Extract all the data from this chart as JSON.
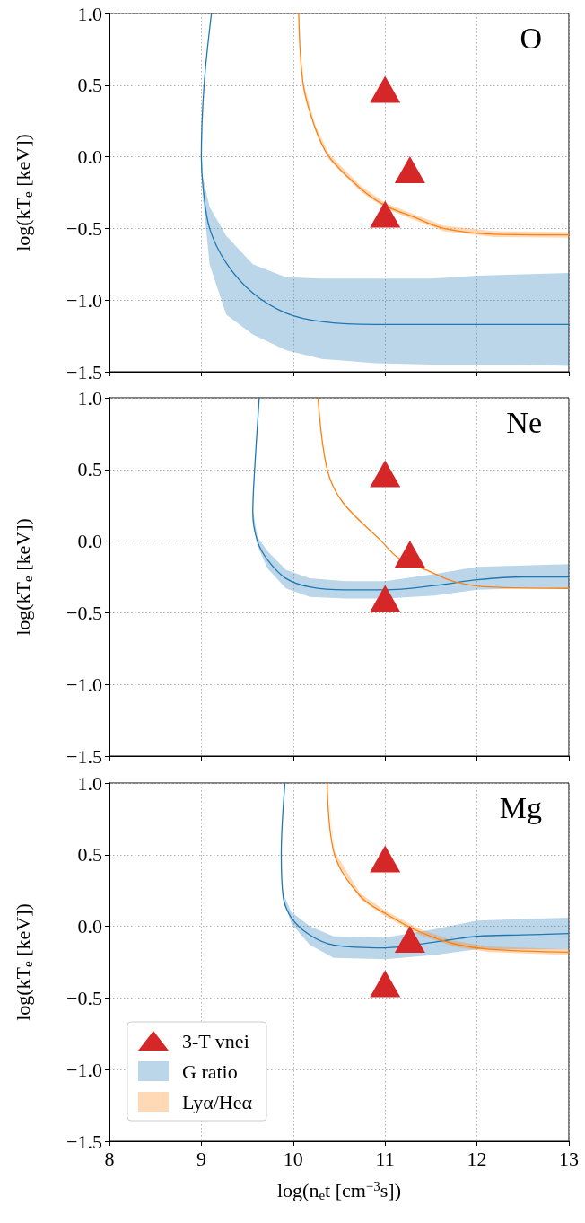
{
  "chart_data": [
    {
      "type": "line",
      "annotations": [
        "O"
      ],
      "ylabel": "log(kT$_{e}$ [keV])",
      "xlim": [
        8,
        13
      ],
      "xticks": [
        8,
        9,
        10,
        11,
        12,
        13
      ],
      "ylim": [
        -1.5,
        1
      ],
      "yticks": [
        {
          "value": -1.5,
          "label": "−1.5"
        },
        {
          "value": -1,
          "label": "−1.0"
        },
        {
          "value": -0.5,
          "label": "−0.5"
        },
        {
          "value": 0,
          "label": "0.0"
        },
        {
          "value": 0.5,
          "label": "0.5"
        },
        {
          "value": 1,
          "label": "1.0"
        }
      ],
      "grid": true,
      "tick_labels": "y",
      "series": [
        {
          "type": "line",
          "color": "#1f77b4",
          "x": [
            9.11,
            9.03,
            9.0,
            9.02,
            9.09,
            9.27,
            9.56,
            9.92,
            10.31,
            10.9,
            11.5,
            12,
            12.5,
            13
          ],
          "values": [
            1.0,
            0.5,
            0.0,
            -0.22,
            -0.5,
            -0.74,
            -0.95,
            -1.09,
            -1.15,
            -1.17,
            -1.17,
            -1.17,
            -1.17,
            -1.17
          ],
          "lower": [
            1.0,
            0.5,
            -0.05,
            -0.3,
            -0.75,
            -1.1,
            -1.24,
            -1.35,
            -1.41,
            -1.44,
            -1.45,
            -1.45,
            -1.45,
            -1.46
          ],
          "upper": [
            1.0,
            0.5,
            0.05,
            -0.15,
            -0.35,
            -0.55,
            -0.75,
            -0.84,
            -0.85,
            -0.85,
            -0.85,
            -0.83,
            -0.82,
            -0.81
          ]
        },
        {
          "type": "line",
          "color": "#ff7f0e",
          "x": [
            10.06,
            10.11,
            10.24,
            10.39,
            10.73,
            11.0,
            11.31,
            11.64,
            12.19,
            13
          ],
          "values": [
            1.0,
            0.5,
            0.2,
            0.0,
            -0.22,
            -0.34,
            -0.42,
            -0.5,
            -0.54,
            -0.545
          ],
          "lower": [
            1.0,
            0.48,
            0.18,
            -0.02,
            -0.24,
            -0.36,
            -0.44,
            -0.52,
            -0.56,
            -0.565
          ],
          "upper": [
            1.0,
            0.52,
            0.22,
            0.02,
            -0.2,
            -0.32,
            -0.4,
            -0.48,
            -0.52,
            -0.525
          ]
        },
        {
          "type": "scatter",
          "color": "#d62728",
          "marker": "triangle",
          "x": [
            11.0,
            11.27,
            11.0
          ],
          "values": [
            0.47,
            -0.09,
            -0.4
          ]
        }
      ]
    },
    {
      "type": "line",
      "annotations": [
        "Ne"
      ],
      "ylabel": "log(kT$_{e}$ [keV])",
      "xlim": [
        8,
        13
      ],
      "xticks": [
        8,
        9,
        10,
        11,
        12,
        13
      ],
      "ylim": [
        -1.5,
        1
      ],
      "yticks": [
        {
          "value": -1.5,
          "label": "−1.5"
        },
        {
          "value": -1,
          "label": "−1.0"
        },
        {
          "value": -0.5,
          "label": "−0.5"
        },
        {
          "value": 0,
          "label": "0.0"
        },
        {
          "value": 0.5,
          "label": "0.5"
        },
        {
          "value": 1,
          "label": "1.0"
        }
      ],
      "grid": true,
      "tick_labels": "y",
      "series": [
        {
          "type": "line",
          "color": "#1f77b4",
          "x": [
            9.63,
            9.58,
            9.56,
            9.61,
            9.72,
            9.92,
            10.18,
            10.57,
            11.0,
            11.54,
            12.0,
            12.5,
            13.0
          ],
          "values": [
            1.0,
            0.5,
            0.2,
            0.0,
            -0.13,
            -0.26,
            -0.32,
            -0.34,
            -0.34,
            -0.31,
            -0.27,
            -0.25,
            -0.25
          ],
          "lower": [
            1.0,
            0.5,
            0.18,
            -0.03,
            -0.19,
            -0.33,
            -0.39,
            -0.4,
            -0.4,
            -0.38,
            -0.34,
            -0.33,
            -0.33
          ],
          "upper": [
            1.0,
            0.5,
            0.22,
            0.03,
            -0.07,
            -0.2,
            -0.26,
            -0.28,
            -0.28,
            -0.23,
            -0.18,
            -0.17,
            -0.16
          ]
        },
        {
          "type": "line",
          "color": "#ff7f0e",
          "x": [
            10.27,
            10.37,
            10.54,
            10.96,
            11.15,
            11.48,
            11.74,
            12.13,
            13
          ],
          "values": [
            1.0,
            0.5,
            0.27,
            0.0,
            -0.12,
            -0.21,
            -0.28,
            -0.32,
            -0.33
          ]
        },
        {
          "type": "scatter",
          "color": "#d62728",
          "marker": "triangle",
          "x": [
            11.0,
            11.27,
            11.0
          ],
          "values": [
            0.47,
            -0.09,
            -0.4
          ]
        }
      ]
    },
    {
      "type": "line",
      "annotations": [
        "Mg"
      ],
      "xlabel": "log(n$_{e}$t [cm$^{−3}$s])",
      "ylabel": "log(kT$_{e}$ [keV])",
      "xlim": [
        8,
        13
      ],
      "xticks": [
        8,
        9,
        10,
        11,
        12,
        13
      ],
      "ylim": [
        -1.5,
        1
      ],
      "yticks": [
        {
          "value": -1.5,
          "label": "−1.5"
        },
        {
          "value": -1,
          "label": "−1.0"
        },
        {
          "value": -0.5,
          "label": "−0.5"
        },
        {
          "value": 0,
          "label": "0.0"
        },
        {
          "value": 0.5,
          "label": "0.5"
        },
        {
          "value": 1,
          "label": "1.0"
        }
      ],
      "grid": true,
      "legend": "bottom left",
      "series": [
        {
          "type": "line",
          "name": "G ratio",
          "color": "#1f77b4",
          "x": [
            9.91,
            9.87,
            9.89,
            9.98,
            10.18,
            10.44,
            11.0,
            11.54,
            12.0,
            12.5,
            13
          ],
          "values": [
            1.0,
            0.5,
            0.21,
            0.06,
            -0.06,
            -0.13,
            -0.15,
            -0.11,
            -0.07,
            -0.06,
            -0.05
          ],
          "lower": [
            1.0,
            0.5,
            0.19,
            0.02,
            -0.13,
            -0.22,
            -0.23,
            -0.2,
            -0.16,
            -0.16,
            -0.16
          ],
          "upper": [
            1.0,
            0.5,
            0.23,
            0.1,
            0.0,
            -0.07,
            -0.08,
            -0.02,
            0.04,
            0.05,
            0.06
          ]
        },
        {
          "type": "line",
          "name": "Lyα/Heα",
          "color": "#ff7f0e",
          "x": [
            10.37,
            10.45,
            10.73,
            11.0,
            11.38,
            11.74,
            12.13,
            13
          ],
          "values": [
            1.0,
            0.5,
            0.21,
            0.09,
            -0.04,
            -0.12,
            -0.16,
            -0.18
          ],
          "lower": [
            1.0,
            0.48,
            0.19,
            0.07,
            -0.06,
            -0.14,
            -0.18,
            -0.2
          ],
          "upper": [
            1.0,
            0.52,
            0.23,
            0.11,
            -0.02,
            -0.1,
            -0.14,
            -0.16
          ]
        },
        {
          "type": "scatter",
          "name": "3-T vnei",
          "color": "#d62728",
          "marker": "triangle",
          "x": [
            11.0,
            11.27,
            11.0
          ],
          "values": [
            0.47,
            -0.09,
            -0.4
          ]
        }
      ]
    }
  ]
}
